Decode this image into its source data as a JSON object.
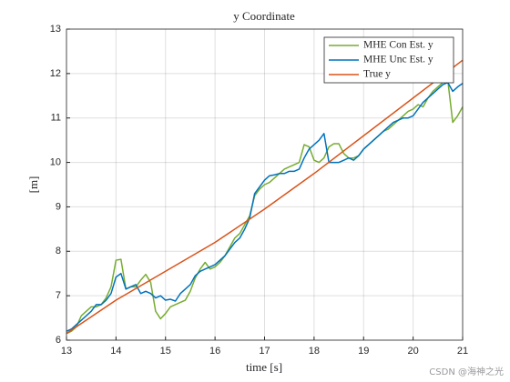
{
  "chart_data": {
    "type": "line",
    "title": "y Coordinate",
    "xlabel": "time [s]",
    "ylabel": "[m]",
    "watermark": "CSDN @海神之光",
    "x": [
      13,
      13.1,
      13.2,
      13.3,
      13.4,
      13.5,
      13.6,
      13.7,
      13.8,
      13.9,
      14,
      14.1,
      14.2,
      14.3,
      14.4,
      14.5,
      14.6,
      14.7,
      14.8,
      14.9,
      15,
      15.1,
      15.2,
      15.3,
      15.4,
      15.5,
      15.6,
      15.7,
      15.8,
      15.9,
      16,
      16.1,
      16.2,
      16.3,
      16.4,
      16.5,
      16.6,
      16.7,
      16.8,
      16.9,
      17,
      17.1,
      17.2,
      17.3,
      17.4,
      17.5,
      17.6,
      17.7,
      17.8,
      17.9,
      18,
      18.1,
      18.2,
      18.3,
      18.4,
      18.5,
      18.6,
      18.7,
      18.8,
      18.9,
      19,
      19.1,
      19.2,
      19.3,
      19.4,
      19.5,
      19.6,
      19.7,
      19.8,
      19.9,
      20,
      20.1,
      20.2,
      20.3,
      20.4,
      20.5,
      20.6,
      20.7,
      20.8,
      20.9,
      21
    ],
    "series": [
      {
        "name": "MHE Con Est. y",
        "color": "#77ac30",
        "values": [
          6.15,
          6.2,
          6.3,
          6.55,
          6.65,
          6.75,
          6.75,
          6.8,
          6.95,
          7.2,
          7.8,
          7.82,
          7.15,
          7.2,
          7.2,
          7.35,
          7.48,
          7.3,
          6.65,
          6.48,
          6.6,
          6.75,
          6.8,
          6.85,
          6.9,
          7.1,
          7.4,
          7.6,
          7.75,
          7.6,
          7.65,
          7.75,
          7.9,
          8.1,
          8.3,
          8.4,
          8.6,
          8.8,
          9.25,
          9.4,
          9.5,
          9.55,
          9.65,
          9.75,
          9.85,
          9.9,
          9.95,
          10.0,
          10.4,
          10.35,
          10.05,
          10.0,
          10.1,
          10.35,
          10.42,
          10.42,
          10.2,
          10.1,
          10.1,
          10.15,
          10.3,
          10.4,
          10.5,
          10.6,
          10.7,
          10.75,
          10.85,
          10.95,
          11.05,
          11.15,
          11.2,
          11.3,
          11.25,
          11.45,
          11.6,
          11.7,
          11.8,
          11.85,
          10.9,
          11.05,
          11.25
        ]
      },
      {
        "name": "MHE Unc Est. y",
        "color": "#0072bd",
        "values": [
          6.2,
          6.25,
          6.35,
          6.45,
          6.55,
          6.65,
          6.8,
          6.8,
          6.9,
          7.05,
          7.42,
          7.5,
          7.15,
          7.2,
          7.25,
          7.05,
          7.1,
          7.05,
          6.95,
          7.0,
          6.9,
          6.92,
          6.88,
          7.05,
          7.15,
          7.25,
          7.45,
          7.55,
          7.6,
          7.65,
          7.7,
          7.8,
          7.9,
          8.05,
          8.2,
          8.3,
          8.5,
          8.75,
          9.3,
          9.45,
          9.6,
          9.7,
          9.72,
          9.75,
          9.75,
          9.8,
          9.8,
          9.85,
          10.1,
          10.3,
          10.4,
          10.5,
          10.65,
          10.0,
          10.0,
          10.0,
          10.05,
          10.1,
          10.05,
          10.15,
          10.3,
          10.4,
          10.5,
          10.6,
          10.7,
          10.8,
          10.9,
          10.95,
          11.0,
          11.0,
          11.05,
          11.2,
          11.35,
          11.45,
          11.55,
          11.65,
          11.75,
          11.8,
          11.6,
          11.7,
          11.78
        ]
      },
      {
        "name": "True y",
        "color": "#d95319",
        "x": [
          13,
          14,
          15,
          16,
          17,
          18,
          19,
          20,
          21
        ],
        "values": [
          6.15,
          6.9,
          7.55,
          8.2,
          8.95,
          9.75,
          10.6,
          11.45,
          12.3
        ]
      }
    ],
    "xlim": [
      13,
      21
    ],
    "xticks": [
      13,
      14,
      15,
      16,
      17,
      18,
      19,
      20,
      21
    ],
    "ylim": [
      6,
      13
    ],
    "yticks": [
      6,
      7,
      8,
      9,
      10,
      11,
      12,
      13
    ],
    "grid": true,
    "legend": "northeast"
  }
}
